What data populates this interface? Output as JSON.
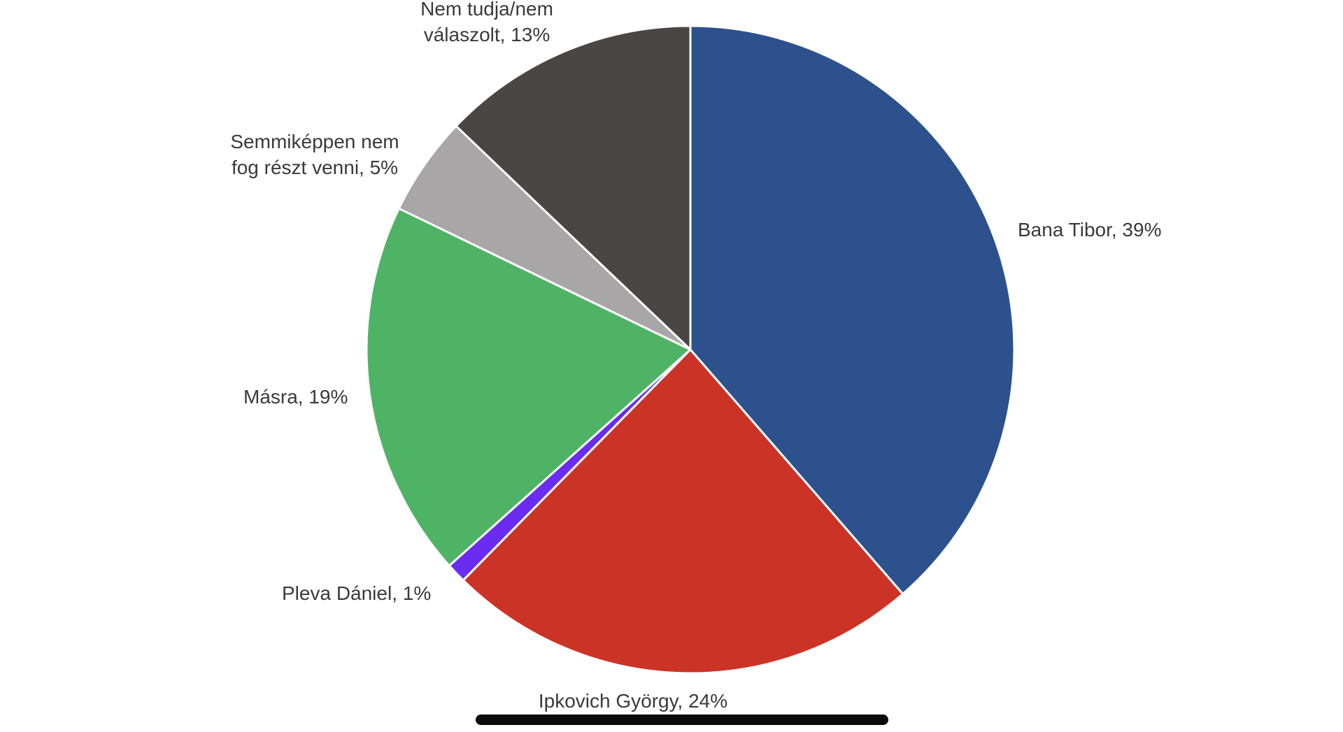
{
  "chart_data": {
    "type": "pie",
    "title": "",
    "start_angle_deg": 0,
    "direction": "clockwise",
    "slices": [
      {
        "label": "Bana Tibor, 39%",
        "value": 39,
        "color": "#2d518c"
      },
      {
        "label": "Ipkovich György, 24%",
        "value": 24,
        "color": "#cc3327"
      },
      {
        "label": "Pleva Dániel, 1%",
        "value": 1,
        "color": "#6a2cf0"
      },
      {
        "label": "Másra, 19%",
        "value": 19,
        "color": "#4fb366"
      },
      {
        "label": "Semmiképpen nem fog részt venni, 5%",
        "label_lines": [
          "Semmiképpen nem",
          "fog részt venni, 5%"
        ],
        "value": 5,
        "color": "#a8a6a7"
      },
      {
        "label": "Nem tudja/nem válaszolt, 13%",
        "label_lines": [
          "Nem tudja/nem",
          "válaszolt, 13%"
        ],
        "value": 13,
        "color": "#4a4646"
      }
    ]
  }
}
